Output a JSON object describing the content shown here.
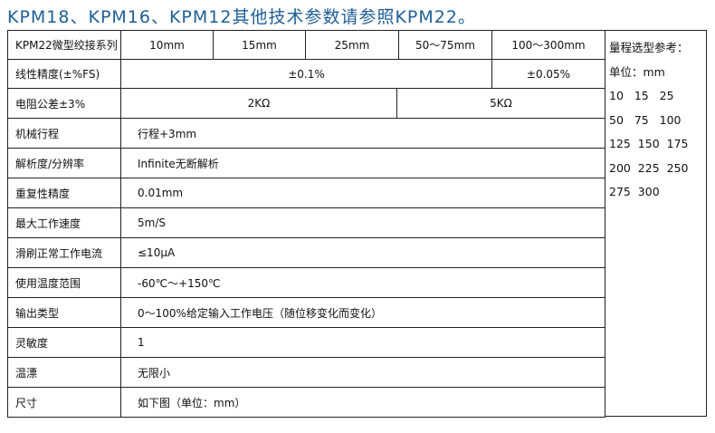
{
  "title": "KPM18、KPM16、KPM12其他技术参数请参照KPM22。",
  "header": {
    "label": "KPM22微型绞接系列",
    "sizes": [
      "10mm",
      "15mm",
      "25mm",
      "50～75mm",
      "100～300mm"
    ]
  },
  "linearity": {
    "label": "线性精度(±%FS)",
    "value_small": "±0.1%",
    "value_large": "±0.05%"
  },
  "resistance": {
    "label": "电阻公差±3%",
    "value_small": "2KΩ",
    "value_large": "5KΩ"
  },
  "rows": [
    {
      "label": "机械行程",
      "value": "行程+3mm"
    },
    {
      "label": "解析度/分辨率",
      "value": "Infinite无断解析"
    },
    {
      "label": "重复性精度",
      "value": "0.01mm"
    },
    {
      "label": "最大工作速度",
      "value": "5m/S"
    },
    {
      "label": "滑刷正常工作电流",
      "value": "≤10μA"
    },
    {
      "label": "使用温度范围",
      "value": "-60℃～+150℃"
    },
    {
      "label": "输出类型",
      "value": "0～100%给定输入工作电压（随位移变化而变化）"
    },
    {
      "label": "灵敏度",
      "value": "1"
    },
    {
      "label": "温漂",
      "value": "无限小"
    },
    {
      "label": "尺寸",
      "value": "如下图（单位：mm）"
    }
  ],
  "range_ref": {
    "title": "量程选型参考：",
    "unit": "单位：mm",
    "lines": [
      "10   15   25",
      "50   75   100",
      "125  150  175",
      "200  225  250",
      "275  300"
    ]
  }
}
